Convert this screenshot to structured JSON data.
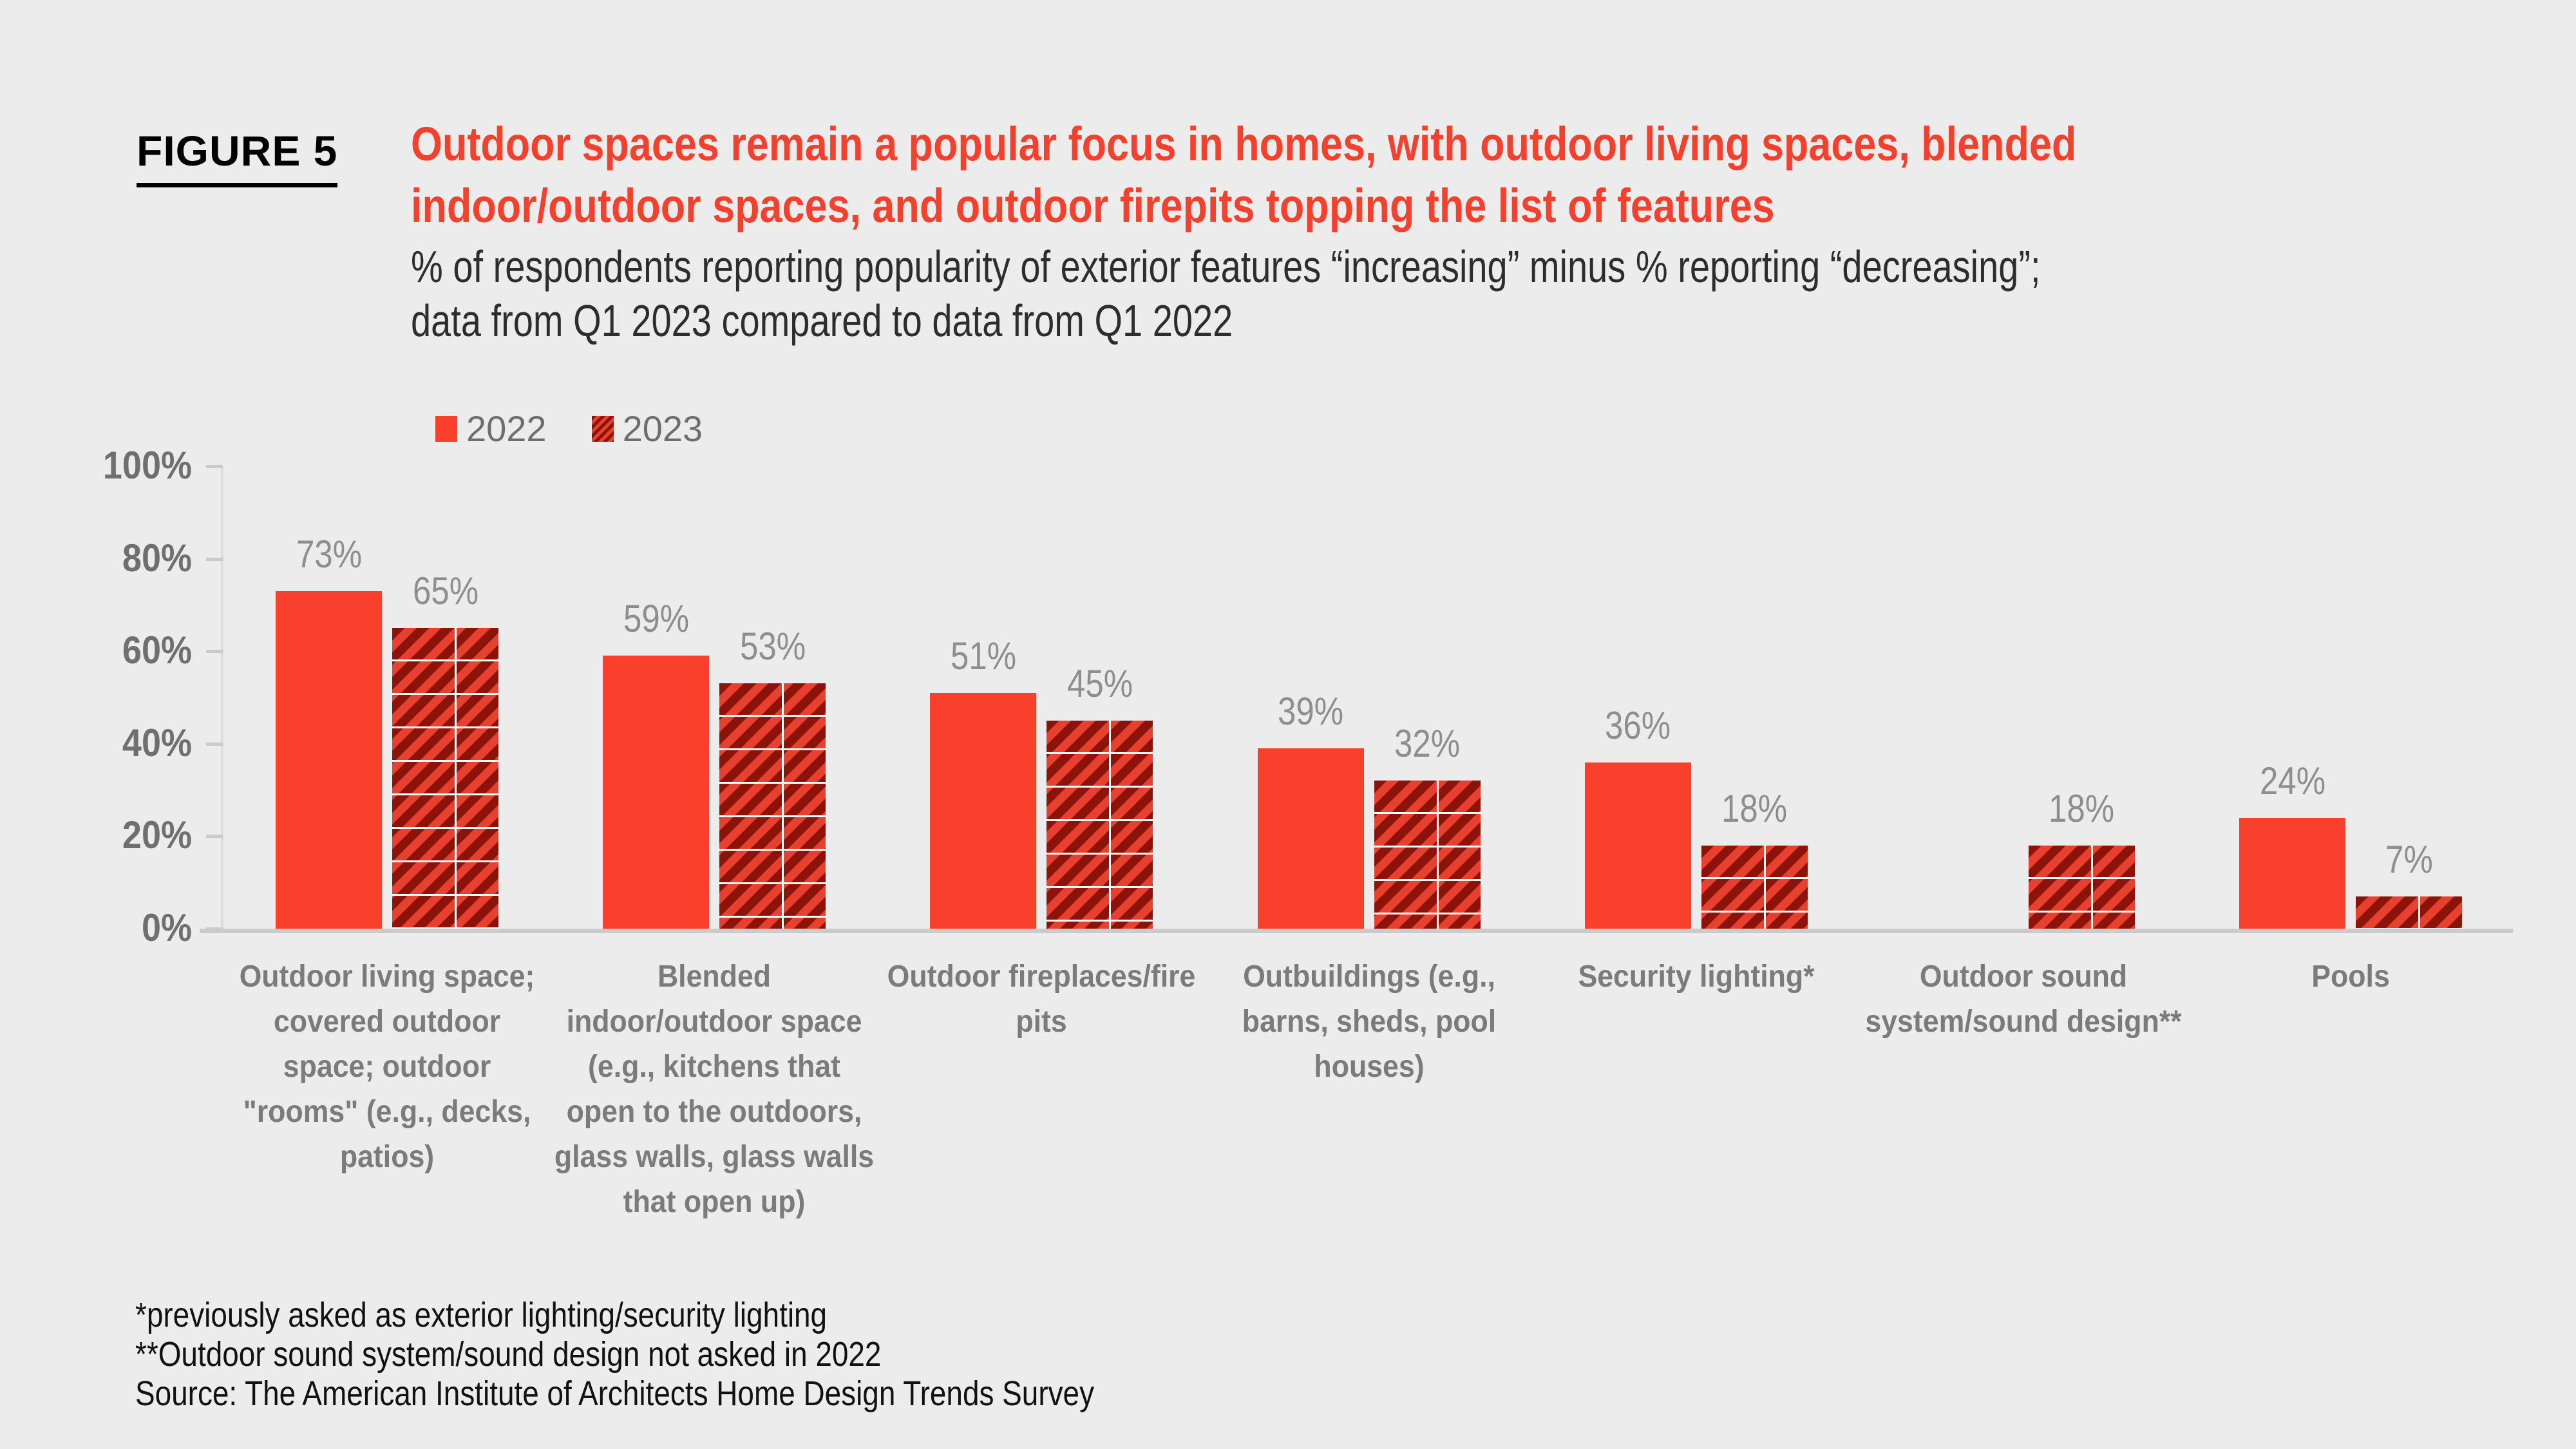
{
  "figure_label": "FIGURE 5",
  "title_lines": [
    "Outdoor spaces remain a popular focus in homes, with outdoor living spaces, blended",
    "indoor/outdoor spaces, and outdoor firepits topping the list of features"
  ],
  "subtitle_lines": [
    "% of respondents reporting popularity of exterior features “increasing” minus % reporting “decreasing”;",
    "data from Q1 2023 compared to data from Q1 2022"
  ],
  "colors": {
    "background": "#ececec",
    "title_red": "#f6402e",
    "subtitle_gray": "#2d2d2d",
    "bar_solid_2022": "#f8402c",
    "hatch_base_2023": "#e8402e",
    "hatch_stripe_2023": "#8c1309",
    "value_label_gray": "#8e8e8e",
    "category_label_gray": "#7b7b7b",
    "ytick_label_gray": "#6f6f6f",
    "legend_text_gray": "#6e6e6e",
    "axis_line_gray": "#dbdbdb",
    "baseline_gray": "#cbcbcb"
  },
  "chart_data": {
    "type": "bar",
    "title": "Outdoor spaces remain a popular focus in homes, with outdoor living spaces, blended indoor/outdoor spaces, and outdoor firepits topping the list of features",
    "subtitle": "% of respondents reporting popularity of exterior features “increasing” minus % reporting “decreasing”; data from Q1 2023 compared to data from Q1 2022",
    "categories": [
      "Outdoor living space; covered outdoor space; outdoor \"rooms\" (e.g., decks, patios)",
      "Blended indoor/outdoor space (e.g., kitchens that open to the outdoors, glass walls, glass walls that open up)",
      "Outdoor fireplaces/fire pits",
      "Outbuildings (e.g., barns, sheds, pool houses)",
      "Security lighting*",
      "Outdoor sound system/sound design**",
      "Pools"
    ],
    "series": [
      {
        "name": "2022",
        "style": "solid",
        "values": [
          73,
          59,
          51,
          39,
          36,
          null,
          24
        ]
      },
      {
        "name": "2023",
        "style": "hatched",
        "values": [
          65,
          53,
          45,
          32,
          18,
          18,
          7
        ]
      }
    ],
    "value_labels": [
      [
        "73%",
        "59%",
        "51%",
        "39%",
        "36%",
        null,
        "24%"
      ],
      [
        "65%",
        "53%",
        "45%",
        "32%",
        "18%",
        "18%",
        "7%"
      ]
    ],
    "ylabel": "",
    "xlabel": "",
    "ylim": [
      0,
      100
    ],
    "yticks": [
      "0%",
      "20%",
      "40%",
      "60%",
      "80%",
      "100%"
    ],
    "grid": false,
    "legend_position": "top"
  },
  "footnotes": [
    "*previously asked as exterior lighting/security lighting",
    "**Outdoor sound system/sound design not asked in 2022",
    "Source: The American Institute of Architects Home Design Trends Survey"
  ]
}
